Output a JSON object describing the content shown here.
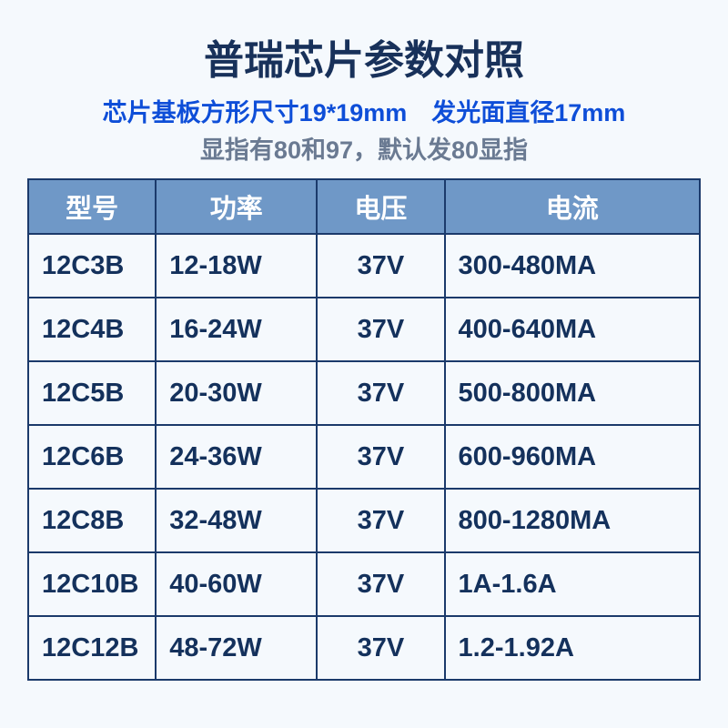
{
  "title": "普瑞芯片参数对照",
  "subtitle1": "芯片基板方形尺寸19*19mm　发光面直径17mm",
  "subtitle2": "显指有80和97，默认发80显指",
  "table": {
    "columns": [
      "型号",
      "功率",
      "电压",
      "电流"
    ],
    "rows": [
      [
        "12C3B",
        "12-18W",
        "37V",
        "300-480MA"
      ],
      [
        "12C4B",
        "16-24W",
        "37V",
        "400-640MA"
      ],
      [
        "12C5B",
        "20-30W",
        "37V",
        "500-800MA"
      ],
      [
        "12C6B",
        "24-36W",
        "37V",
        "600-960MA"
      ],
      [
        "12C8B",
        "32-48W",
        "37V",
        "800-1280MA"
      ],
      [
        "12C10B",
        "40-60W",
        "37V",
        "1A-1.6A"
      ],
      [
        "12C12B",
        "48-72W",
        "37V",
        "1.2-1.92A"
      ]
    ]
  },
  "style": {
    "background_color": "#f5f9fd",
    "title_color": "#18315a",
    "subtitle1_color": "#0e4ed8",
    "subtitle2_color": "#6a7a92",
    "header_bg": "#6f98c7",
    "header_text": "#ffffff",
    "cell_text": "#14315c",
    "border_color": "#1b3a6b",
    "title_fontsize": 44,
    "subtitle_fontsize": 27,
    "cell_fontsize": 29
  }
}
